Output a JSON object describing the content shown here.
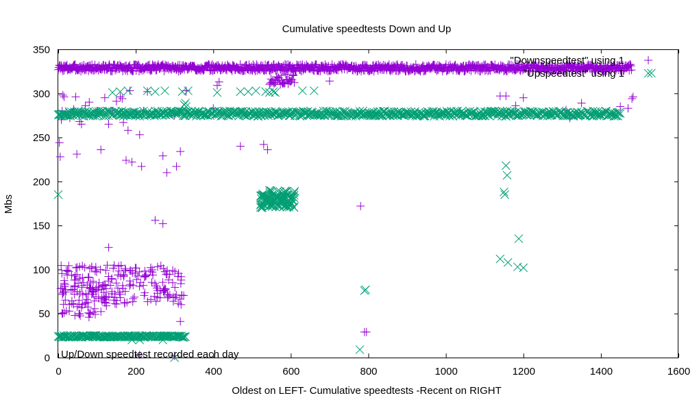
{
  "chart_data": {
    "type": "scatter",
    "title": "Cumulative speedtests Down and Up",
    "xlabel": "Oldest on LEFT- Cumulative speedtests -Recent on RIGHT",
    "ylabel": "Mbs",
    "xlim": [
      0,
      1600
    ],
    "ylim": [
      0,
      350
    ],
    "xticks": [
      0,
      200,
      400,
      600,
      800,
      1000,
      1200,
      1400,
      1600
    ],
    "yticks": [
      0,
      50,
      100,
      150,
      200,
      250,
      300,
      350
    ],
    "annotation": "Up/Down speedtest recorded each day",
    "grid": false,
    "legend_position": "top-right",
    "colors": {
      "down": "#9400d3",
      "up": "#009e73"
    },
    "series": [
      {
        "name": "\"Downspeedtest\" using 1",
        "marker": "plus",
        "color": "#9400d3",
        "bands": [
          {
            "x_start": 0,
            "x_end": 1480,
            "y": 329,
            "spread": 4,
            "step": 1.5
          },
          {
            "x_start": 545,
            "x_end": 610,
            "y": 316,
            "spread": 6,
            "step": 2
          }
        ],
        "points": [
          [
            3,
            244
          ],
          [
            5,
            228
          ],
          [
            8,
            270
          ],
          [
            10,
            280
          ],
          [
            12,
            298
          ],
          [
            15,
            296
          ],
          [
            20,
            279
          ],
          [
            30,
            272
          ],
          [
            40,
            282
          ],
          [
            45,
            296
          ],
          [
            48,
            231
          ],
          [
            55,
            268
          ],
          [
            60,
            265
          ],
          [
            70,
            286
          ],
          [
            80,
            290
          ],
          [
            95,
            275
          ],
          [
            110,
            236
          ],
          [
            120,
            295
          ],
          [
            130,
            265
          ],
          [
            140,
            280
          ],
          [
            150,
            291
          ],
          [
            160,
            296
          ],
          [
            165,
            294
          ],
          [
            168,
            267
          ],
          [
            175,
            224
          ],
          [
            180,
            258
          ],
          [
            185,
            303
          ],
          [
            190,
            222
          ],
          [
            200,
            276
          ],
          [
            210,
            253
          ],
          [
            215,
            217
          ],
          [
            230,
            302
          ],
          [
            270,
            229
          ],
          [
            280,
            210
          ],
          [
            300,
            275
          ],
          [
            305,
            217
          ],
          [
            315,
            234
          ],
          [
            330,
            303
          ],
          [
            400,
            283
          ],
          [
            410,
            309
          ],
          [
            415,
            313
          ],
          [
            470,
            240
          ],
          [
            530,
            242
          ],
          [
            540,
            236
          ],
          [
            700,
            314
          ],
          [
            780,
            172
          ],
          [
            790,
            29
          ],
          [
            795,
            29
          ],
          [
            1140,
            297
          ],
          [
            1155,
            297
          ],
          [
            1180,
            286
          ],
          [
            1200,
            295
          ],
          [
            1310,
            281
          ],
          [
            1320,
            272
          ],
          [
            1350,
            289
          ],
          [
            1450,
            285
          ],
          [
            1470,
            283
          ],
          [
            1480,
            294
          ],
          [
            1483,
            296
          ],
          [
            250,
            156
          ],
          [
            270,
            152
          ],
          [
            130,
            125
          ],
          [
            315,
            41
          ],
          [
            300,
            2
          ],
          [
            210,
            3
          ],
          [
            60,
            280
          ],
          [
            100,
            280
          ],
          [
            220,
            280
          ]
        ],
        "cluster": {
          "x_start": 5,
          "x_end": 325,
          "count": 200,
          "y_low": 60,
          "y_high": 105,
          "seed": 7
        }
      },
      {
        "name": "\"Upspeedtest\" using 1",
        "marker": "cross",
        "color": "#009e73",
        "bands": [
          {
            "x_start": 0,
            "x_end": 1450,
            "y": 277,
            "spread": 3,
            "step": 2
          },
          {
            "x_start": 0,
            "x_end": 328,
            "y": 24,
            "spread": 1,
            "step": 2
          }
        ],
        "points": [
          [
            0,
            185
          ],
          [
            140,
            301
          ],
          [
            160,
            302
          ],
          [
            180,
            303
          ],
          [
            230,
            303
          ],
          [
            250,
            302
          ],
          [
            275,
            303
          ],
          [
            320,
            302
          ],
          [
            335,
            303
          ],
          [
            410,
            301
          ],
          [
            470,
            302
          ],
          [
            490,
            302
          ],
          [
            510,
            303
          ],
          [
            535,
            302
          ],
          [
            545,
            301
          ],
          [
            555,
            302
          ],
          [
            560,
            301
          ],
          [
            630,
            303
          ],
          [
            660,
            303
          ],
          [
            325,
            287
          ],
          [
            330,
            285
          ],
          [
            328,
            289
          ],
          [
            793,
            77
          ],
          [
            790,
            76
          ],
          [
            778,
            9
          ],
          [
            1150,
            188
          ],
          [
            1152,
            185
          ],
          [
            1155,
            218
          ],
          [
            1158,
            207
          ],
          [
            1140,
            112
          ],
          [
            1160,
            108
          ],
          [
            1185,
            103
          ],
          [
            1188,
            135
          ],
          [
            1200,
            102
          ],
          [
            1530,
            323
          ],
          [
            300,
            0
          ],
          [
            210,
            20
          ],
          [
            270,
            20
          ],
          [
            190,
            20
          ]
        ],
        "cluster": {
          "x_start": 520,
          "x_end": 610,
          "count": 120,
          "y_low": 170,
          "y_high": 190,
          "seed": 11
        }
      }
    ]
  }
}
